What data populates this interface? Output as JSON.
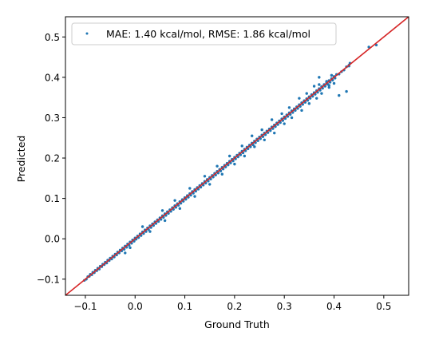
{
  "chart_data": {
    "type": "scatter",
    "title": "",
    "xlabel": "Ground Truth",
    "ylabel": "Predicted",
    "xlim": [
      -0.14,
      0.55
    ],
    "ylim": [
      -0.14,
      0.55
    ],
    "xticks": [
      -0.1,
      0.0,
      0.1,
      0.2,
      0.3,
      0.4,
      0.5
    ],
    "yticks": [
      -0.1,
      0.0,
      0.1,
      0.2,
      0.3,
      0.4,
      0.5
    ],
    "xtick_labels": [
      "−0.1",
      "0.0",
      "0.1",
      "0.2",
      "0.3",
      "0.4",
      "0.5"
    ],
    "ytick_labels": [
      "−0.1",
      "0.0",
      "0.1",
      "0.2",
      "0.3",
      "0.4",
      "0.5"
    ],
    "grid": false,
    "legend_position": "top-left",
    "series": [
      {
        "name": "MAE: 1.40 kcal/mol, RMSE: 1.86 kcal/mol",
        "color": "#1f77b4",
        "marker": "dot",
        "points": [
          [
            -0.102,
            -0.103
          ],
          [
            -0.098,
            -0.1
          ],
          [
            -0.095,
            -0.094
          ],
          [
            -0.092,
            -0.093
          ],
          [
            -0.09,
            -0.088
          ],
          [
            -0.087,
            -0.089
          ],
          [
            -0.085,
            -0.083
          ],
          [
            -0.082,
            -0.084
          ],
          [
            -0.08,
            -0.078
          ],
          [
            -0.077,
            -0.079
          ],
          [
            -0.075,
            -0.073
          ],
          [
            -0.072,
            -0.075
          ],
          [
            -0.07,
            -0.068
          ],
          [
            -0.067,
            -0.069
          ],
          [
            -0.065,
            -0.063
          ],
          [
            -0.062,
            -0.064
          ],
          [
            -0.06,
            -0.058
          ],
          [
            -0.057,
            -0.06
          ],
          [
            -0.055,
            -0.053
          ],
          [
            -0.052,
            -0.054
          ],
          [
            -0.05,
            -0.048
          ],
          [
            -0.047,
            -0.05
          ],
          [
            -0.045,
            -0.043
          ],
          [
            -0.042,
            -0.045
          ],
          [
            -0.04,
            -0.038
          ],
          [
            -0.037,
            -0.04
          ],
          [
            -0.035,
            -0.033
          ],
          [
            -0.032,
            -0.035
          ],
          [
            -0.03,
            -0.028
          ],
          [
            -0.027,
            -0.03
          ],
          [
            -0.025,
            -0.023
          ],
          [
            -0.022,
            -0.026
          ],
          [
            -0.02,
            -0.018
          ],
          [
            -0.017,
            -0.021
          ],
          [
            -0.015,
            -0.013
          ],
          [
            -0.012,
            -0.016
          ],
          [
            -0.01,
            -0.008
          ],
          [
            -0.007,
            -0.011
          ],
          [
            -0.005,
            -0.003
          ],
          [
            -0.002,
            -0.006
          ],
          [
            0.0,
            0.002
          ],
          [
            0.002,
            -0.001
          ],
          [
            0.005,
            0.007
          ],
          [
            0.007,
            0.003
          ],
          [
            0.01,
            0.012
          ],
          [
            0.012,
            0.008
          ],
          [
            0.015,
            0.017
          ],
          [
            0.017,
            0.013
          ],
          [
            0.02,
            0.022
          ],
          [
            0.022,
            0.018
          ],
          [
            0.025,
            0.027
          ],
          [
            0.027,
            0.023
          ],
          [
            0.03,
            0.032
          ],
          [
            0.032,
            0.028
          ],
          [
            0.035,
            0.037
          ],
          [
            0.037,
            0.033
          ],
          [
            0.04,
            0.042
          ],
          [
            0.042,
            0.038
          ],
          [
            0.045,
            0.047
          ],
          [
            0.047,
            0.043
          ],
          [
            0.05,
            0.052
          ],
          [
            0.052,
            0.048
          ],
          [
            0.055,
            0.057
          ],
          [
            0.057,
            0.053
          ],
          [
            0.06,
            0.062
          ],
          [
            0.062,
            0.058
          ],
          [
            0.065,
            0.067
          ],
          [
            0.067,
            0.063
          ],
          [
            0.07,
            0.072
          ],
          [
            0.072,
            0.068
          ],
          [
            0.075,
            0.077
          ],
          [
            0.077,
            0.073
          ],
          [
            0.08,
            0.082
          ],
          [
            0.082,
            0.078
          ],
          [
            0.085,
            0.087
          ],
          [
            0.087,
            0.083
          ],
          [
            0.09,
            0.092
          ],
          [
            0.092,
            0.088
          ],
          [
            0.095,
            0.097
          ],
          [
            0.097,
            0.093
          ],
          [
            0.1,
            0.102
          ],
          [
            0.102,
            0.098
          ],
          [
            0.105,
            0.107
          ],
          [
            0.107,
            0.103
          ],
          [
            0.11,
            0.112
          ],
          [
            0.112,
            0.108
          ],
          [
            0.115,
            0.117
          ],
          [
            0.117,
            0.113
          ],
          [
            0.12,
            0.122
          ],
          [
            0.122,
            0.118
          ],
          [
            0.125,
            0.127
          ],
          [
            0.127,
            0.123
          ],
          [
            0.13,
            0.132
          ],
          [
            0.132,
            0.128
          ],
          [
            0.135,
            0.137
          ],
          [
            0.137,
            0.133
          ],
          [
            0.14,
            0.142
          ],
          [
            0.142,
            0.138
          ],
          [
            0.145,
            0.147
          ],
          [
            0.147,
            0.143
          ],
          [
            0.15,
            0.152
          ],
          [
            0.152,
            0.148
          ],
          [
            0.155,
            0.157
          ],
          [
            0.157,
            0.153
          ],
          [
            0.16,
            0.162
          ],
          [
            0.162,
            0.158
          ],
          [
            0.165,
            0.167
          ],
          [
            0.167,
            0.163
          ],
          [
            0.17,
            0.172
          ],
          [
            0.172,
            0.168
          ],
          [
            0.175,
            0.177
          ],
          [
            0.177,
            0.173
          ],
          [
            0.18,
            0.182
          ],
          [
            0.182,
            0.178
          ],
          [
            0.185,
            0.187
          ],
          [
            0.187,
            0.183
          ],
          [
            0.19,
            0.192
          ],
          [
            0.192,
            0.188
          ],
          [
            0.195,
            0.197
          ],
          [
            0.197,
            0.193
          ],
          [
            0.2,
            0.202
          ],
          [
            0.202,
            0.198
          ],
          [
            0.205,
            0.207
          ],
          [
            0.207,
            0.203
          ],
          [
            0.21,
            0.212
          ],
          [
            0.212,
            0.208
          ],
          [
            0.215,
            0.217
          ],
          [
            0.217,
            0.213
          ],
          [
            0.22,
            0.222
          ],
          [
            0.222,
            0.218
          ],
          [
            0.225,
            0.227
          ],
          [
            0.227,
            0.223
          ],
          [
            0.23,
            0.232
          ],
          [
            0.232,
            0.228
          ],
          [
            0.235,
            0.237
          ],
          [
            0.237,
            0.233
          ],
          [
            0.24,
            0.242
          ],
          [
            0.242,
            0.238
          ],
          [
            0.245,
            0.247
          ],
          [
            0.247,
            0.243
          ],
          [
            0.25,
            0.252
          ],
          [
            0.252,
            0.248
          ],
          [
            0.255,
            0.257
          ],
          [
            0.257,
            0.253
          ],
          [
            0.26,
            0.262
          ],
          [
            0.262,
            0.258
          ],
          [
            0.265,
            0.267
          ],
          [
            0.267,
            0.263
          ],
          [
            0.27,
            0.272
          ],
          [
            0.272,
            0.268
          ],
          [
            0.275,
            0.277
          ],
          [
            0.277,
            0.273
          ],
          [
            0.28,
            0.282
          ],
          [
            0.282,
            0.278
          ],
          [
            0.285,
            0.287
          ],
          [
            0.287,
            0.283
          ],
          [
            0.29,
            0.292
          ],
          [
            0.292,
            0.288
          ],
          [
            0.295,
            0.297
          ],
          [
            0.297,
            0.293
          ],
          [
            0.3,
            0.302
          ],
          [
            0.302,
            0.298
          ],
          [
            0.305,
            0.307
          ],
          [
            0.307,
            0.303
          ],
          [
            0.31,
            0.312
          ],
          [
            0.312,
            0.308
          ],
          [
            0.315,
            0.317
          ],
          [
            0.317,
            0.313
          ],
          [
            0.32,
            0.322
          ],
          [
            0.322,
            0.318
          ],
          [
            0.325,
            0.327
          ],
          [
            0.327,
            0.323
          ],
          [
            0.33,
            0.332
          ],
          [
            0.332,
            0.328
          ],
          [
            0.335,
            0.337
          ],
          [
            0.337,
            0.333
          ],
          [
            0.34,
            0.342
          ],
          [
            0.342,
            0.338
          ],
          [
            0.345,
            0.347
          ],
          [
            0.347,
            0.343
          ],
          [
            0.35,
            0.352
          ],
          [
            0.352,
            0.348
          ],
          [
            0.355,
            0.357
          ],
          [
            0.357,
            0.353
          ],
          [
            0.36,
            0.362
          ],
          [
            0.362,
            0.358
          ],
          [
            0.365,
            0.367
          ],
          [
            0.367,
            0.363
          ],
          [
            0.37,
            0.372
          ],
          [
            0.372,
            0.368
          ],
          [
            0.375,
            0.377
          ],
          [
            0.377,
            0.373
          ],
          [
            0.38,
            0.382
          ],
          [
            0.382,
            0.378
          ],
          [
            0.385,
            0.387
          ],
          [
            0.387,
            0.383
          ],
          [
            0.39,
            0.392
          ],
          [
            0.392,
            0.388
          ],
          [
            0.395,
            0.397
          ],
          [
            0.397,
            0.393
          ],
          [
            0.4,
            0.402
          ],
          [
            0.402,
            0.398
          ],
          [
            0.405,
            0.407
          ],
          [
            0.41,
            0.408
          ],
          [
            0.415,
            0.414
          ],
          [
            0.42,
            0.418
          ],
          [
            0.425,
            0.426
          ],
          [
            0.43,
            0.428
          ],
          [
            -0.02,
            -0.035
          ],
          [
            -0.01,
            -0.022
          ],
          [
            0.015,
            0.03
          ],
          [
            0.03,
            0.018
          ],
          [
            0.055,
            0.07
          ],
          [
            0.06,
            0.045
          ],
          [
            0.08,
            0.095
          ],
          [
            0.09,
            0.075
          ],
          [
            0.11,
            0.125
          ],
          [
            0.12,
            0.105
          ],
          [
            0.14,
            0.155
          ],
          [
            0.15,
            0.135
          ],
          [
            0.165,
            0.18
          ],
          [
            0.175,
            0.16
          ],
          [
            0.19,
            0.205
          ],
          [
            0.2,
            0.185
          ],
          [
            0.215,
            0.23
          ],
          [
            0.22,
            0.205
          ],
          [
            0.235,
            0.255
          ],
          [
            0.24,
            0.228
          ],
          [
            0.255,
            0.27
          ],
          [
            0.26,
            0.245
          ],
          [
            0.275,
            0.295
          ],
          [
            0.28,
            0.262
          ],
          [
            0.295,
            0.31
          ],
          [
            0.3,
            0.285
          ],
          [
            0.31,
            0.325
          ],
          [
            0.315,
            0.3
          ],
          [
            0.33,
            0.348
          ],
          [
            0.335,
            0.318
          ],
          [
            0.345,
            0.36
          ],
          [
            0.35,
            0.335
          ],
          [
            0.36,
            0.378
          ],
          [
            0.365,
            0.348
          ],
          [
            0.37,
            0.382
          ],
          [
            0.375,
            0.36
          ],
          [
            0.385,
            0.39
          ],
          [
            0.39,
            0.375
          ],
          [
            0.395,
            0.405
          ],
          [
            0.4,
            0.385
          ],
          [
            0.37,
            0.4
          ],
          [
            0.39,
            0.38
          ],
          [
            0.41,
            0.355
          ],
          [
            0.425,
            0.365
          ],
          [
            0.43,
            0.43
          ],
          [
            0.47,
            0.475
          ],
          [
            0.485,
            0.48
          ],
          [
            0.432,
            0.435
          ]
        ]
      }
    ],
    "reference_line": {
      "from": [
        -0.14,
        -0.14
      ],
      "to": [
        0.55,
        0.55
      ],
      "color": "#d62728"
    }
  }
}
